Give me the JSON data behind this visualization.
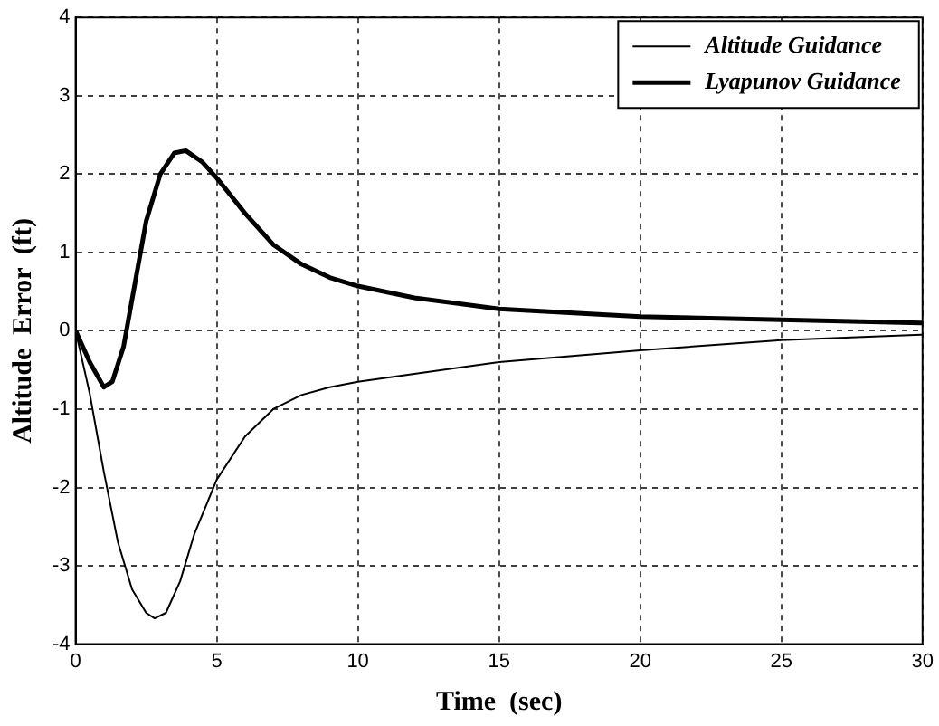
{
  "chart_data": {
    "type": "line",
    "xlabel": "Time  (sec)",
    "ylabel": "Altitude  Error  (ft)",
    "xlim": [
      0,
      30
    ],
    "xticks": [
      0,
      5,
      10,
      15,
      20,
      25,
      30
    ],
    "ylim": [
      -4,
      4
    ],
    "yticks": [
      -4,
      -3,
      -2,
      -1,
      0,
      1,
      2,
      3,
      4
    ],
    "grid": true,
    "legend": "top right",
    "marker": "none",
    "series": [
      {
        "name": "Altitude Guidance",
        "color": "#000000",
        "x": [
          0,
          0.5,
          1,
          1.5,
          2,
          2.5,
          2.8,
          3.2,
          3.7,
          4.2,
          5,
          6,
          7,
          8,
          9,
          10,
          12,
          15,
          20,
          25,
          30
        ],
        "values": [
          0,
          -0.8,
          -1.8,
          -2.7,
          -3.3,
          -3.6,
          -3.67,
          -3.6,
          -3.2,
          -2.6,
          -1.9,
          -1.35,
          -1,
          -0.82,
          -0.72,
          -0.65,
          -0.55,
          -0.4,
          -0.25,
          -0.12,
          -0.05
        ]
      },
      {
        "name": "Lyapunov Guidance",
        "color": "#000000",
        "x": [
          0,
          0.5,
          1,
          1.3,
          1.7,
          2,
          2.5,
          3,
          3.5,
          3.9,
          4.5,
          5,
          6,
          7,
          8,
          9,
          10,
          12,
          15,
          20,
          25,
          30
        ],
        "values": [
          0,
          -0.4,
          -0.72,
          -0.65,
          -0.2,
          0.4,
          1.4,
          2,
          2.27,
          2.3,
          2.15,
          1.95,
          1.5,
          1.1,
          0.85,
          0.68,
          0.57,
          0.42,
          0.28,
          0.18,
          0.14,
          0.1
        ]
      }
    ]
  }
}
